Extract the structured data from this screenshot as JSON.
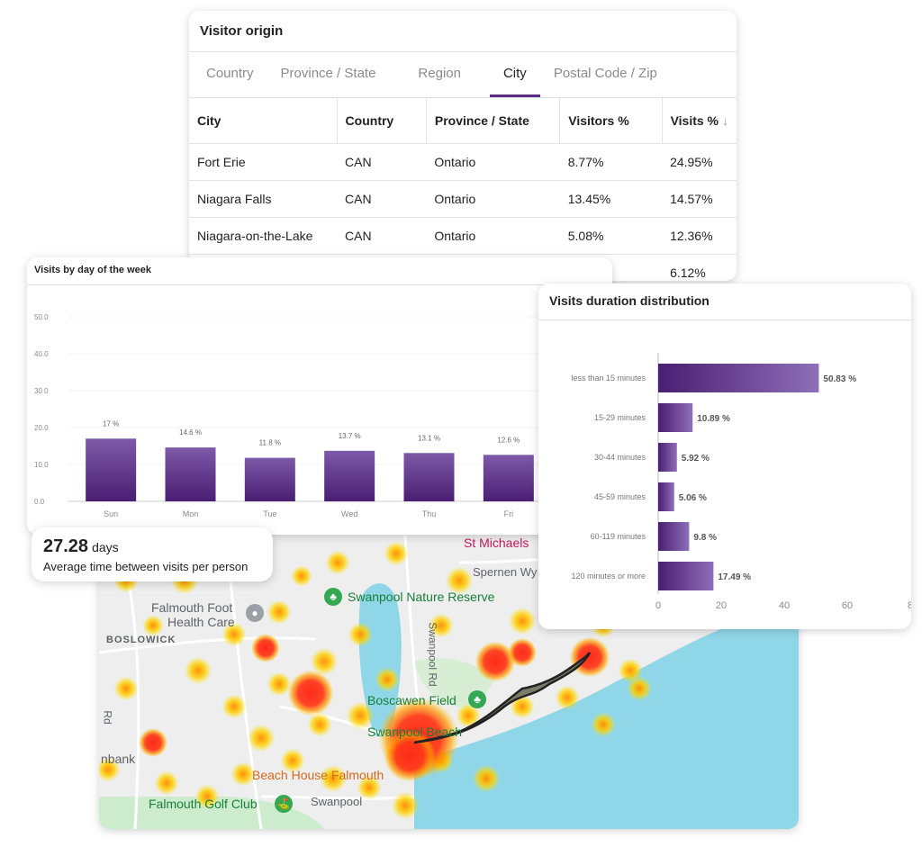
{
  "visitor_origin": {
    "title": "Visitor origin",
    "tabs": [
      {
        "label": "Country",
        "active": false
      },
      {
        "label": "Province / State",
        "active": false
      },
      {
        "label": "Region",
        "active": false
      },
      {
        "label": "City",
        "active": true
      },
      {
        "label": "Postal Code / Zip",
        "active": false
      }
    ],
    "columns": [
      "City",
      "Country",
      "Province / State",
      "Visitors %",
      "Visits %"
    ],
    "sort_icon": "arrow-down-icon",
    "rows": [
      [
        "Fort Erie",
        "CAN",
        "Ontario",
        "8.77%",
        "24.95%"
      ],
      [
        "Niagara Falls",
        "CAN",
        "Ontario",
        "13.45%",
        "14.57%"
      ],
      [
        "Niagara-on-the-Lake",
        "CAN",
        "Ontario",
        "5.08%",
        "12.36%"
      ],
      [
        "",
        "",
        "",
        "",
        "6.12%"
      ]
    ]
  },
  "avg_visits": {
    "value": "27.28",
    "unit": "days",
    "label": "Average time between visits per person"
  },
  "map": {
    "labels": {
      "st_michaels": "St Michaels",
      "spernen": "Spernen Wy",
      "swanpool_nature": "Swanpool Nature Reserve",
      "falmouth_foot": "Falmouth Foot",
      "health_care": "Health Care",
      "boslowick": "BOSLOWICK",
      "swanpool_rd": "Swanpool Rd",
      "boscawen": "Boscawen Field",
      "swanpool_beach": "Swanpool Beach",
      "beach_house": "Beach House Falmouth",
      "golf": "Falmouth Golf Club",
      "swanpool": "Swanpool",
      "rd": "Rd",
      "bank": "nbank"
    },
    "colors": {
      "land": "#eeeeee",
      "water": "#8fd6e8",
      "park": "#cdeccd",
      "heat_hot": "#ff2a1a",
      "heat_warm": "#ffd000"
    }
  },
  "charts": {
    "chart_data": [
      {
        "type": "bar",
        "title": "Visits by day of the week",
        "categories": [
          "Sun",
          "Mon",
          "Tue",
          "Wed",
          "Thu",
          "Fri"
        ],
        "values": [
          17,
          14.6,
          11.8,
          13.7,
          13.1,
          12.6
        ],
        "data_labels": [
          "17 %",
          "14.6 %",
          "11.8 %",
          "13.7 %",
          "13.1 %",
          "12.6 %"
        ],
        "ylim": [
          0,
          50
        ],
        "yticks": [
          "0.0",
          "10.0",
          "20.0",
          "30.0",
          "40.0",
          "50.0"
        ],
        "color": "#5b2a86"
      },
      {
        "type": "bar",
        "orientation": "horizontal",
        "title": "Visits duration distribution",
        "categories": [
          "less than 15 minutes",
          "15-29 minutes",
          "30-44 minutes",
          "45-59 minutes",
          "60-119 minutes",
          "120 minutes or more"
        ],
        "values": [
          50.83,
          10.89,
          5.92,
          5.06,
          9.8,
          17.49
        ],
        "data_labels": [
          "50.83 %",
          "10.89 %",
          "5.92 %",
          "5.06 %",
          "9.8 %",
          "17.49 %"
        ],
        "xticks": [
          "0",
          "20",
          "40",
          "60",
          "8"
        ],
        "xlim": [
          0,
          80
        ],
        "color": "#5b2a86"
      }
    ]
  }
}
